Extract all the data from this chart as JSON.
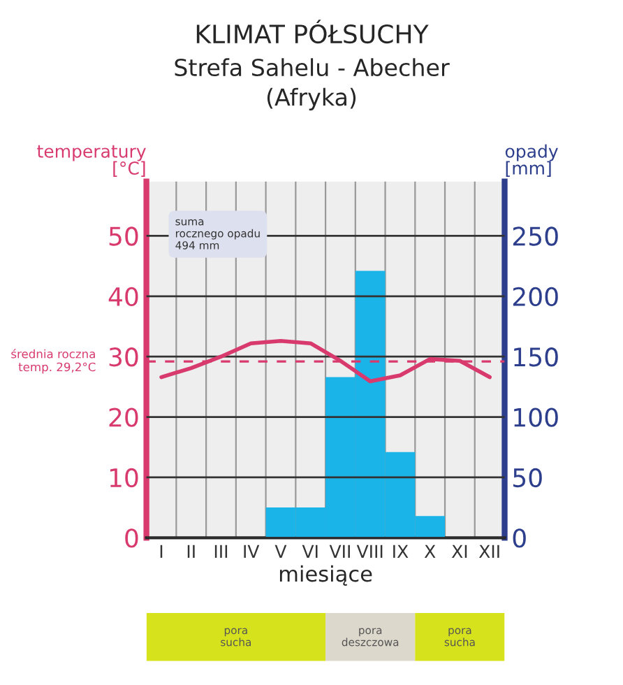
{
  "chart_data": {
    "type": "bar",
    "title": "KLIMAT PÓŁSUCHY",
    "subtitle": "Strefa Sahelu - Abecher\n(Afryka)",
    "xlabel": "miesiące",
    "ylabel": "temperatury\n[°C]",
    "y2label": "opady\n[mm]",
    "categories": [
      "I",
      "II",
      "III",
      "IV",
      "V",
      "VI",
      "VII",
      "VIII",
      "IX",
      "X",
      "XI",
      "XII"
    ],
    "series": [
      {
        "axis": "y2",
        "color": "#1ab4e8",
        "values": [
          0,
          0,
          0,
          0,
          25,
          25,
          133,
          221,
          71,
          18,
          0,
          0
        ]
      },
      {
        "type": "line",
        "axis": "y",
        "color": "#d83a6e",
        "values": [
          26.6,
          28.1,
          30.0,
          32.2,
          32.6,
          32.2,
          29.3,
          25.9,
          26.9,
          29.6,
          29.3,
          26.6
        ]
      }
    ],
    "ylim": [
      0,
      59
    ],
    "yticks": [
      0,
      10,
      20,
      30,
      40,
      50
    ],
    "y2lim": [
      0,
      295
    ],
    "y2ticks": [
      0,
      50,
      100,
      150,
      200,
      250
    ],
    "ref_lines": [
      {
        "axis": "y",
        "value": 29.2,
        "label": "średnia roczna\ntemp. 29,2°C",
        "color": "#d83a6e",
        "line_style": "dashed"
      }
    ],
    "annotations": [
      "suma\nrocznego opadu\n494 mm",
      "pora\nsucha",
      "pora\ndeszczowa",
      "pora\nsucha"
    ],
    "grid": true,
    "legend": false
  }
}
